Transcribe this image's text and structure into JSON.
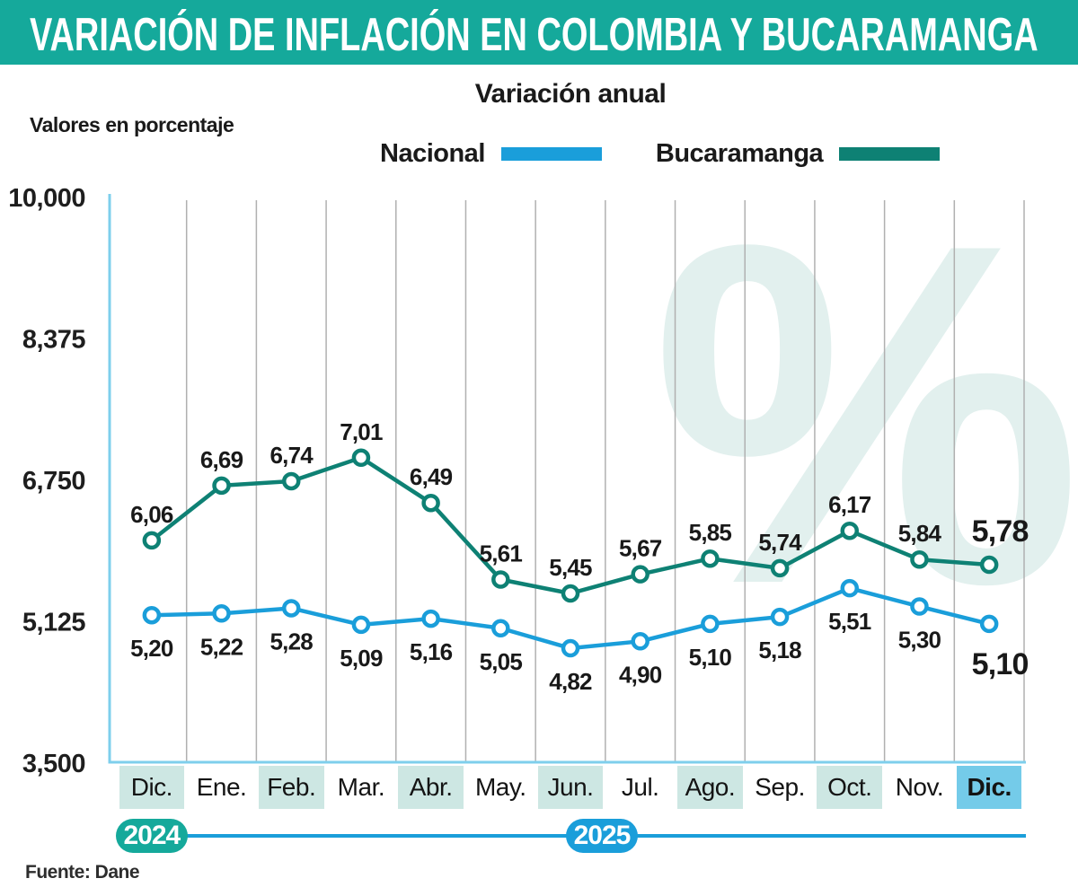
{
  "header": {
    "title": "VARIACIÓN DE INFLACIÓN EN COLOMBIA Y BUCARAMANGA"
  },
  "subtitle": "Variación anual",
  "axis_note": "Valores en porcentaje",
  "source": "Fuente: Dane",
  "watermark_symbol": "%",
  "legend": {
    "items": [
      {
        "label": "Nacional",
        "color": "#1A9EDA"
      },
      {
        "label": "Bucaramanga",
        "color": "#0E8174"
      }
    ]
  },
  "years": {
    "items": [
      {
        "label": "2024",
        "color": "#15A99B"
      },
      {
        "label": "2025",
        "color": "#1A9EDA"
      }
    ]
  },
  "colors": {
    "header": "#15A99B",
    "nacional": "#1A9EDA",
    "bucaramanga": "#0E8174",
    "axis": "#7ECFEC",
    "gridline": "#B0B0B0",
    "mint_cell": "#CDE7E3",
    "blue_cell": "#74CBE9",
    "watermark": "#E2F0EE",
    "text": "#1A1A1A"
  },
  "chart_data": {
    "type": "line",
    "title": "Variación anual",
    "units": "percent",
    "grid": "vertical",
    "categories": [
      "Dic.",
      "Ene.",
      "Feb.",
      "Mar.",
      "Abr.",
      "May.",
      "Jun.",
      "Jul.",
      "Ago.",
      "Sep.",
      "Oct.",
      "Nov.",
      "Dic."
    ],
    "month_highlights": [
      "mint",
      "none",
      "mint",
      "none",
      "mint",
      "none",
      "mint",
      "none",
      "mint",
      "none",
      "mint",
      "none",
      "blue"
    ],
    "year_groups": [
      {
        "year": "2024",
        "category_indices": [
          0
        ]
      },
      {
        "year": "2025",
        "category_indices": [
          1,
          2,
          3,
          4,
          5,
          6,
          7,
          8,
          9,
          10,
          11,
          12
        ]
      }
    ],
    "series": [
      {
        "name": "Nacional",
        "color": "#1A9EDA",
        "values": [
          5.2,
          5.22,
          5.28,
          5.09,
          5.16,
          5.05,
          4.82,
          4.9,
          5.1,
          5.18,
          5.51,
          5.3,
          5.1
        ],
        "labels": [
          "5,20",
          "5,22",
          "5,28",
          "5,09",
          "5,16",
          "5,05",
          "4,82",
          "4,90",
          "5,10",
          "5,18",
          "5,51",
          "5,30",
          "5,10"
        ]
      },
      {
        "name": "Bucaramanga",
        "color": "#0E8174",
        "values": [
          6.06,
          6.69,
          6.74,
          7.01,
          6.49,
          5.61,
          5.45,
          5.67,
          5.85,
          5.74,
          6.17,
          5.84,
          5.78
        ],
        "labels": [
          "6,06",
          "6,69",
          "6,74",
          "7,01",
          "6,49",
          "5,61",
          "5,45",
          "5,67",
          "5,85",
          "5,74",
          "6,17",
          "5,84",
          "5,78"
        ]
      }
    ],
    "y_axis": {
      "tick_labels": [
        "10,000",
        "8,375",
        "6,750",
        "5,125",
        "3,500"
      ],
      "tick_values": [
        10,
        8.375,
        6.75,
        5.125,
        3.5
      ],
      "range": [
        3.5,
        10
      ]
    }
  }
}
